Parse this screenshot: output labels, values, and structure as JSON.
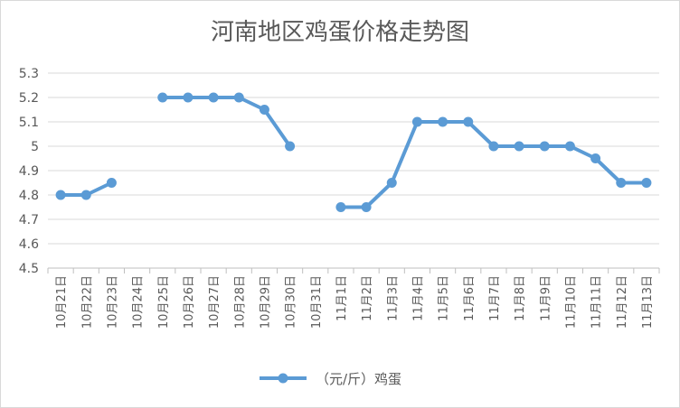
{
  "chart_data": {
    "type": "line",
    "title": "河南地区鸡蛋价格走势图",
    "xlabel": "",
    "ylabel": "",
    "ylim": [
      4.5,
      5.3
    ],
    "ytick_labels": [
      "4.5",
      "4.6",
      "4.7",
      "4.8",
      "4.9",
      "5",
      "5.1",
      "5.2",
      "5.3"
    ],
    "categories": [
      "10月21日",
      "10月22日",
      "10月23日",
      "10月24日",
      "10月25日",
      "10月26日",
      "10月27日",
      "10月28日",
      "10月29日",
      "10月30日",
      "10月31日",
      "11月1日",
      "11月2日",
      "11月3日",
      "11月4日",
      "11月5日",
      "11月6日",
      "11月7日",
      "11月8日",
      "11月9日",
      "11月10日",
      "11月11日",
      "11月12日",
      "11月13日"
    ],
    "series": [
      {
        "name": "（元/斤）鸡蛋",
        "color": "#5b9bd5",
        "values": [
          4.8,
          4.8,
          4.85,
          null,
          5.2,
          5.2,
          5.2,
          5.2,
          5.15,
          5.0,
          null,
          4.75,
          4.75,
          4.85,
          5.1,
          5.1,
          5.1,
          5.0,
          5.0,
          5.0,
          5.0,
          4.95,
          4.85,
          4.85
        ]
      }
    ],
    "grid": true,
    "legend_position": "bottom"
  }
}
